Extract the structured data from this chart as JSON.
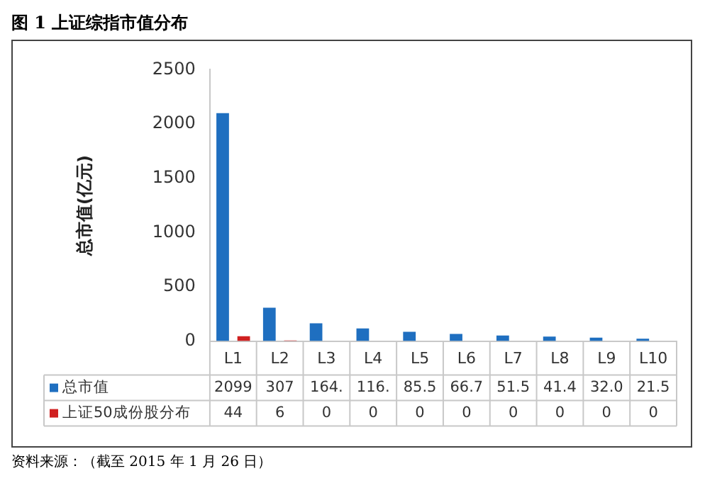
{
  "chart_data": {
    "type": "bar",
    "title": "图 1 上证综指市值分布",
    "ylabel": "总市值(亿元)",
    "categories": [
      "L1",
      "L2",
      "L3",
      "L4",
      "L5",
      "L6",
      "L7",
      "L8",
      "L9",
      "L10"
    ],
    "series": [
      {
        "name": "总市值",
        "color": "#1f6fc0",
        "values": [
          2099,
          307,
          164,
          116,
          85.5,
          66.7,
          51.5,
          41.4,
          32.0,
          21.5
        ],
        "value_labels": [
          "2099",
          "307",
          "164.",
          "116.",
          "85.5",
          "66.7",
          "51.5",
          "41.4",
          "32.0",
          "21.5"
        ]
      },
      {
        "name": "上证50成份股分布",
        "color": "#d02020",
        "values": [
          44,
          6,
          0,
          0,
          0,
          0,
          0,
          0,
          0,
          0
        ],
        "value_labels": [
          "44",
          "6",
          "0",
          "0",
          "0",
          "0",
          "0",
          "0",
          "0",
          "0"
        ]
      }
    ],
    "ylim": [
      0,
      2500
    ],
    "yticks": [
      0,
      500,
      1000,
      1500,
      2000,
      2500
    ],
    "grid": false,
    "legend": "bottom",
    "annotations": [
      "资料来源：（截至 2015 年 1 月 26 日）"
    ]
  }
}
